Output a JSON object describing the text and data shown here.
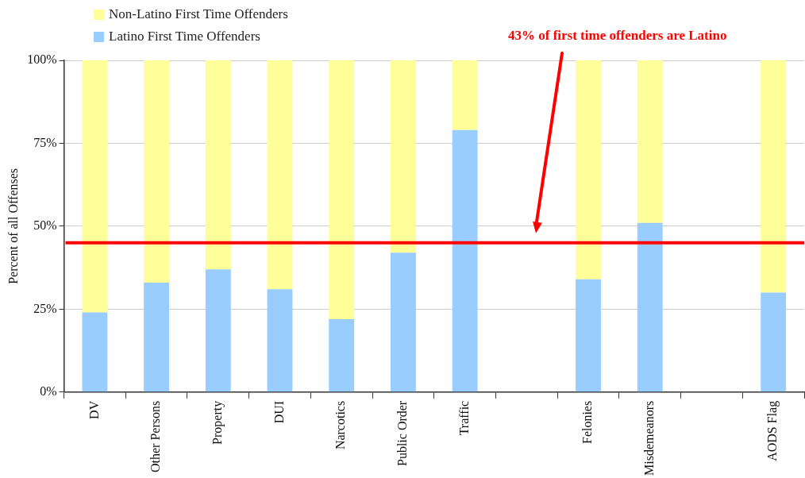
{
  "chart_data": {
    "type": "bar",
    "stacked": true,
    "ylabel": "Percent of all Offenses",
    "categories": [
      "DV",
      "Other Persons",
      "Property",
      "DUI",
      "Narcotics",
      "Public Order",
      "Traffic",
      null,
      "Felonies",
      "Misdemeanors",
      null,
      "AODS Flag"
    ],
    "series": [
      {
        "name": "Latino First Time Offenders",
        "color": "#99ccff",
        "values": [
          24,
          33,
          37,
          31,
          22,
          42,
          79,
          null,
          34,
          51,
          null,
          30
        ]
      },
      {
        "name": "Non-Latino First Time Offenders",
        "color": "#ffff99",
        "values": [
          76,
          67,
          63,
          69,
          78,
          58,
          21,
          null,
          66,
          49,
          null,
          70
        ]
      }
    ],
    "ylim": [
      0,
      100
    ],
    "yticks": [
      {
        "value": 0,
        "label": "0%"
      },
      {
        "value": 25,
        "label": "25%"
      },
      {
        "value": 50,
        "label": "50%"
      },
      {
        "value": 75,
        "label": "75%"
      },
      {
        "value": 100,
        "label": "100%"
      }
    ],
    "grid": "y",
    "legend": "top left",
    "ref_lines": [
      {
        "axis": "y",
        "value": 45,
        "color": "#ff0000",
        "label": "43% of first time offenders are Latino"
      }
    ]
  }
}
